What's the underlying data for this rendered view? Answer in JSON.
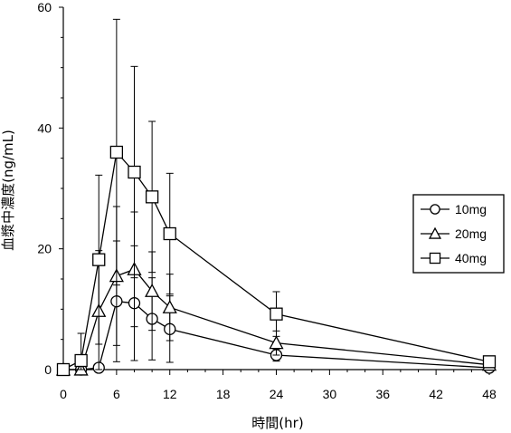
{
  "chart_data": {
    "type": "line",
    "xlabel": "時間(hr)",
    "ylabel": "血漿中濃度(ng/mL)",
    "xlim": [
      0,
      48
    ],
    "ylim": [
      0,
      60
    ],
    "xticks": [
      0,
      6,
      12,
      18,
      24,
      30,
      36,
      42,
      48
    ],
    "yticks": [
      0,
      20,
      40,
      60
    ],
    "grid": false,
    "legend_position": "right",
    "series": [
      {
        "name": "10mg",
        "marker": "circle",
        "x": [
          0,
          2,
          4,
          6,
          8,
          10,
          12,
          24,
          48
        ],
        "y": [
          0,
          0,
          0.3,
          11.3,
          11.0,
          8.4,
          6.7,
          2.4,
          0.3
        ],
        "err": [
          0,
          0,
          0.5,
          10.0,
          9.5,
          6.8,
          5.5,
          1.0,
          0.3
        ]
      },
      {
        "name": "20mg",
        "marker": "triangle",
        "x": [
          0,
          2,
          4,
          6,
          8,
          10,
          12,
          24,
          48
        ],
        "y": [
          0,
          0,
          9.7,
          15.5,
          16.6,
          13.0,
          10.3,
          4.4,
          0.8
        ],
        "err": [
          0,
          0,
          10.0,
          11.5,
          9.5,
          6.5,
          5.5,
          2.0,
          0.5
        ]
      },
      {
        "name": "40mg",
        "marker": "square",
        "x": [
          0,
          2,
          4,
          6,
          8,
          10,
          12,
          24,
          48
        ],
        "y": [
          0,
          1.5,
          18.2,
          36.0,
          32.7,
          28.6,
          22.5,
          9.2,
          1.3
        ],
        "err": [
          0,
          4.5,
          14.0,
          22.0,
          17.5,
          12.5,
          10.0,
          3.7,
          0.8
        ]
      }
    ]
  }
}
